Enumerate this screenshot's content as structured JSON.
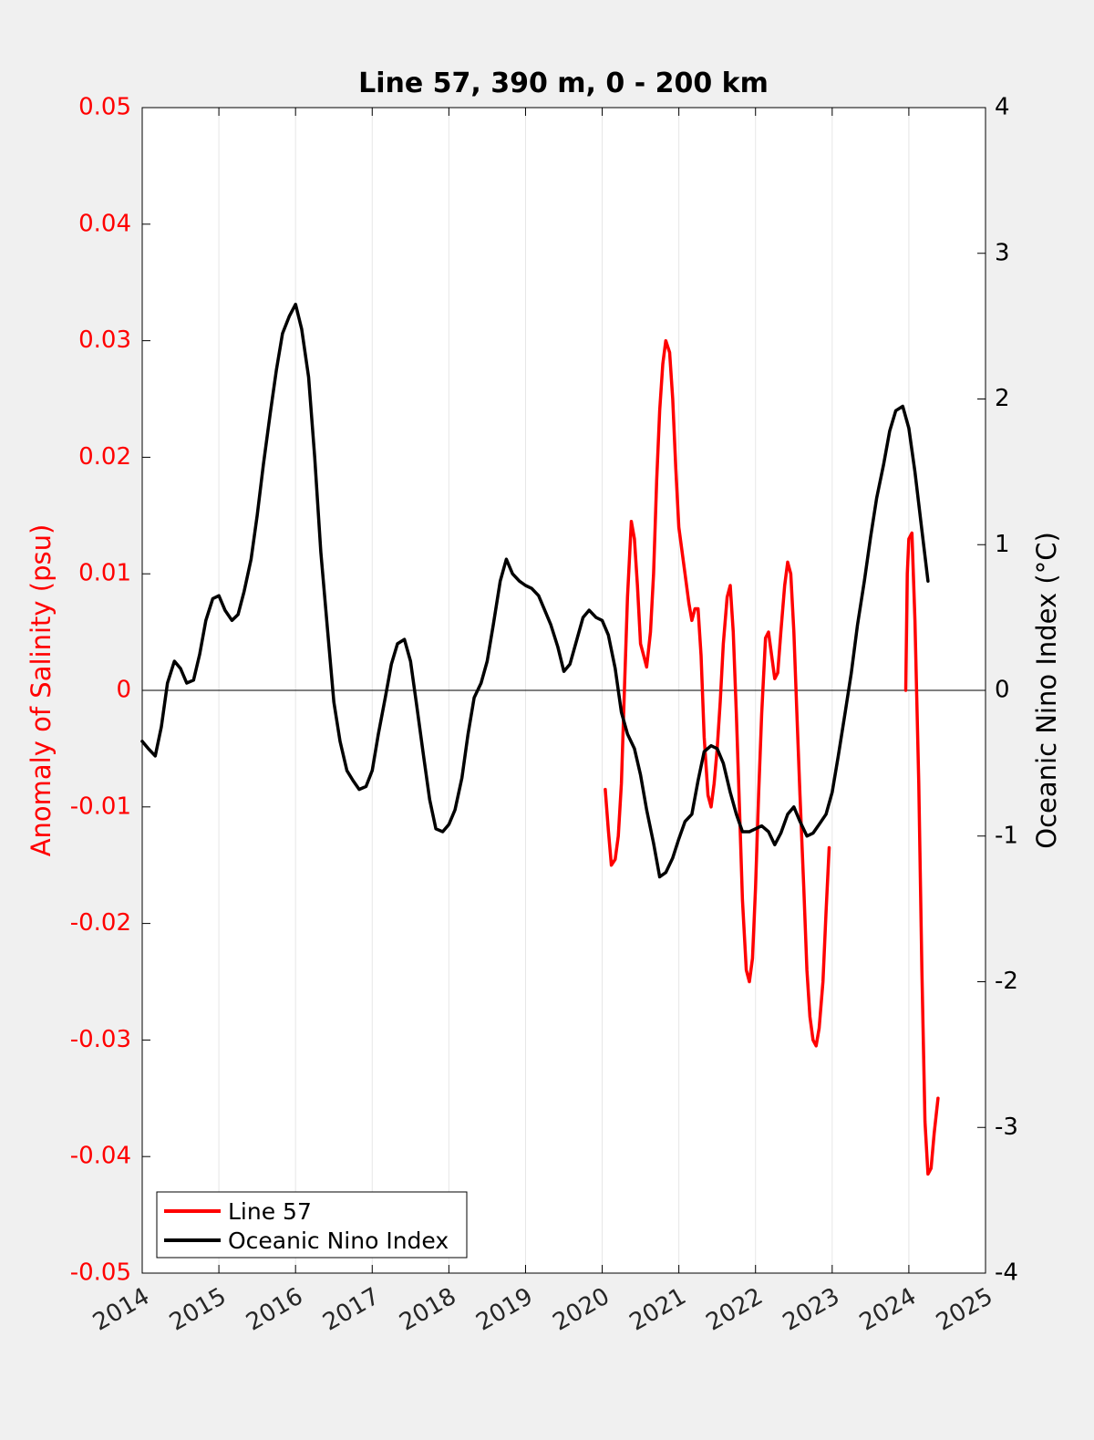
{
  "chart_data": {
    "type": "line",
    "title": "Line 57, 390 m, 0 - 200 km",
    "xlabel": "",
    "ylabel": "Anomaly of Salinity (psu)",
    "y2label": "Oceanic Nino Index (°C)",
    "xlim": [
      2014,
      2025
    ],
    "ylim": [
      -0.05,
      0.05
    ],
    "y2lim": [
      -4,
      4
    ],
    "grid": "x-only",
    "zero_line": true,
    "legend_placement": "bottom-left",
    "colors": {
      "salinity": "#ff0000",
      "oni": "#000000",
      "left_axis": "#ff0000",
      "right_axis": "#000000"
    },
    "x_ticks": [
      "2014",
      "2015",
      "2016",
      "2017",
      "2018",
      "2019",
      "2020",
      "2021",
      "2022",
      "2023",
      "2024",
      "2025"
    ],
    "x_tick_values": [
      2014,
      2015,
      2016,
      2017,
      2018,
      2019,
      2020,
      2021,
      2022,
      2023,
      2024,
      2025
    ],
    "y_ticks": [
      "-0.05",
      "-0.04",
      "-0.03",
      "-0.02",
      "-0.01",
      "0",
      "0.01",
      "0.02",
      "0.03",
      "0.04",
      "0.05"
    ],
    "y_tick_values": [
      -0.05,
      -0.04,
      -0.03,
      -0.02,
      -0.01,
      0,
      0.01,
      0.02,
      0.03,
      0.04,
      0.05
    ],
    "y2_ticks": [
      "-4",
      "-3",
      "-2",
      "-1",
      "0",
      "1",
      "2",
      "3",
      "4"
    ],
    "y2_tick_values": [
      -4,
      -3,
      -2,
      -1,
      0,
      1,
      2,
      3,
      4
    ],
    "series": [
      {
        "name": "Line 57",
        "axis": "left",
        "color": "#ff0000",
        "segments": [
          [
            [
              2020.04,
              -0.0085
            ],
            [
              2020.08,
              -0.012
            ],
            [
              2020.12,
              -0.015
            ],
            [
              2020.17,
              -0.0145
            ],
            [
              2020.21,
              -0.0125
            ],
            [
              2020.25,
              -0.008
            ],
            [
              2020.29,
              0.0
            ],
            [
              2020.33,
              0.008
            ],
            [
              2020.38,
              0.0145
            ],
            [
              2020.42,
              0.013
            ],
            [
              2020.46,
              0.009
            ],
            [
              2020.5,
              0.004
            ],
            [
              2020.54,
              0.003
            ],
            [
              2020.58,
              0.002
            ],
            [
              2020.63,
              0.005
            ],
            [
              2020.67,
              0.01
            ],
            [
              2020.71,
              0.018
            ],
            [
              2020.75,
              0.024
            ],
            [
              2020.79,
              0.028
            ],
            [
              2020.83,
              0.03
            ],
            [
              2020.88,
              0.029
            ],
            [
              2020.92,
              0.025
            ],
            [
              2020.96,
              0.019
            ],
            [
              2021.0,
              0.014
            ],
            [
              2021.04,
              0.012
            ],
            [
              2021.08,
              0.01
            ],
            [
              2021.13,
              0.0075
            ],
            [
              2021.17,
              0.006
            ],
            [
              2021.21,
              0.007
            ],
            [
              2021.25,
              0.007
            ],
            [
              2021.29,
              0.003
            ],
            [
              2021.33,
              -0.004
            ],
            [
              2021.38,
              -0.009
            ],
            [
              2021.42,
              -0.01
            ],
            [
              2021.46,
              -0.008
            ],
            [
              2021.5,
              -0.005
            ],
            [
              2021.54,
              -0.001
            ],
            [
              2021.58,
              0.004
            ],
            [
              2021.63,
              0.008
            ],
            [
              2021.67,
              0.009
            ],
            [
              2021.71,
              0.005
            ],
            [
              2021.75,
              -0.002
            ],
            [
              2021.79,
              -0.01
            ],
            [
              2021.83,
              -0.018
            ],
            [
              2021.88,
              -0.024
            ],
            [
              2021.92,
              -0.025
            ],
            [
              2021.96,
              -0.023
            ],
            [
              2022.0,
              -0.017
            ],
            [
              2022.04,
              -0.009
            ],
            [
              2022.08,
              -0.002
            ],
            [
              2022.13,
              0.0045
            ],
            [
              2022.17,
              0.005
            ],
            [
              2022.21,
              0.003
            ],
            [
              2022.25,
              0.001
            ],
            [
              2022.29,
              0.0015
            ],
            [
              2022.33,
              0.005
            ],
            [
              2022.38,
              0.009
            ],
            [
              2022.42,
              0.011
            ],
            [
              2022.46,
              0.01
            ],
            [
              2022.5,
              0.005
            ],
            [
              2022.54,
              -0.002
            ],
            [
              2022.58,
              -0.009
            ],
            [
              2022.63,
              -0.017
            ],
            [
              2022.67,
              -0.024
            ],
            [
              2022.71,
              -0.028
            ],
            [
              2022.75,
              -0.03
            ],
            [
              2022.79,
              -0.0305
            ],
            [
              2022.83,
              -0.029
            ],
            [
              2022.88,
              -0.025
            ],
            [
              2022.92,
              -0.019
            ],
            [
              2022.96,
              -0.0135
            ]
          ],
          [
            [
              2023.96,
              0.0
            ],
            [
              2023.98,
              0.01
            ],
            [
              2024.0,
              0.013
            ],
            [
              2024.04,
              0.0135
            ],
            [
              2024.08,
              0.006
            ],
            [
              2024.13,
              -0.008
            ],
            [
              2024.17,
              -0.024
            ],
            [
              2024.21,
              -0.037
            ],
            [
              2024.25,
              -0.0415
            ],
            [
              2024.29,
              -0.041
            ],
            [
              2024.33,
              -0.038
            ],
            [
              2024.38,
              -0.035
            ]
          ]
        ]
      },
      {
        "name": "Oceanic Nino Index",
        "axis": "right",
        "color": "#000000",
        "segments": [
          [
            [
              2014.0,
              -0.35
            ],
            [
              2014.08,
              -0.4
            ],
            [
              2014.17,
              -0.45
            ],
            [
              2014.25,
              -0.25
            ],
            [
              2014.33,
              0.05
            ],
            [
              2014.42,
              0.2
            ],
            [
              2014.5,
              0.15
            ],
            [
              2014.58,
              0.05
            ],
            [
              2014.67,
              0.07
            ],
            [
              2014.75,
              0.25
            ],
            [
              2014.83,
              0.48
            ],
            [
              2014.92,
              0.63
            ],
            [
              2015.0,
              0.65
            ],
            [
              2015.08,
              0.55
            ],
            [
              2015.17,
              0.48
            ],
            [
              2015.25,
              0.52
            ],
            [
              2015.33,
              0.68
            ],
            [
              2015.42,
              0.9
            ],
            [
              2015.5,
              1.2
            ],
            [
              2015.58,
              1.55
            ],
            [
              2015.67,
              1.9
            ],
            [
              2015.75,
              2.2
            ],
            [
              2015.83,
              2.45
            ],
            [
              2015.92,
              2.57
            ],
            [
              2016.0,
              2.65
            ],
            [
              2016.08,
              2.48
            ],
            [
              2016.17,
              2.15
            ],
            [
              2016.25,
              1.6
            ],
            [
              2016.33,
              0.95
            ],
            [
              2016.42,
              0.4
            ],
            [
              2016.5,
              -0.08
            ],
            [
              2016.58,
              -0.35
            ],
            [
              2016.67,
              -0.55
            ],
            [
              2016.75,
              -0.62
            ],
            [
              2016.83,
              -0.68
            ],
            [
              2016.92,
              -0.66
            ],
            [
              2017.0,
              -0.55
            ],
            [
              2017.08,
              -0.3
            ],
            [
              2017.17,
              -0.05
            ],
            [
              2017.25,
              0.18
            ],
            [
              2017.33,
              0.32
            ],
            [
              2017.42,
              0.35
            ],
            [
              2017.5,
              0.2
            ],
            [
              2017.58,
              -0.1
            ],
            [
              2017.67,
              -0.45
            ],
            [
              2017.75,
              -0.75
            ],
            [
              2017.83,
              -0.95
            ],
            [
              2017.92,
              -0.97
            ],
            [
              2018.0,
              -0.92
            ],
            [
              2018.08,
              -0.82
            ],
            [
              2018.17,
              -0.6
            ],
            [
              2018.25,
              -0.3
            ],
            [
              2018.33,
              -0.05
            ],
            [
              2018.42,
              0.05
            ],
            [
              2018.5,
              0.2
            ],
            [
              2018.58,
              0.45
            ],
            [
              2018.67,
              0.75
            ],
            [
              2018.75,
              0.9
            ],
            [
              2018.83,
              0.8
            ],
            [
              2018.92,
              0.75
            ],
            [
              2019.0,
              0.72
            ],
            [
              2019.08,
              0.7
            ],
            [
              2019.17,
              0.65
            ],
            [
              2019.25,
              0.55
            ],
            [
              2019.33,
              0.45
            ],
            [
              2019.42,
              0.3
            ],
            [
              2019.5,
              0.13
            ],
            [
              2019.58,
              0.18
            ],
            [
              2019.67,
              0.35
            ],
            [
              2019.75,
              0.5
            ],
            [
              2019.83,
              0.55
            ],
            [
              2019.92,
              0.5
            ],
            [
              2020.0,
              0.48
            ],
            [
              2020.08,
              0.38
            ],
            [
              2020.17,
              0.15
            ],
            [
              2020.25,
              -0.15
            ],
            [
              2020.33,
              -0.3
            ],
            [
              2020.42,
              -0.4
            ],
            [
              2020.5,
              -0.58
            ],
            [
              2020.58,
              -0.82
            ],
            [
              2020.67,
              -1.05
            ],
            [
              2020.75,
              -1.28
            ],
            [
              2020.83,
              -1.25
            ],
            [
              2020.92,
              -1.15
            ],
            [
              2021.0,
              -1.02
            ],
            [
              2021.08,
              -0.9
            ],
            [
              2021.17,
              -0.85
            ],
            [
              2021.25,
              -0.62
            ],
            [
              2021.33,
              -0.42
            ],
            [
              2021.42,
              -0.38
            ],
            [
              2021.5,
              -0.4
            ],
            [
              2021.58,
              -0.5
            ],
            [
              2021.67,
              -0.7
            ],
            [
              2021.75,
              -0.85
            ],
            [
              2021.83,
              -0.97
            ],
            [
              2021.92,
              -0.97
            ],
            [
              2022.0,
              -0.95
            ],
            [
              2022.08,
              -0.93
            ],
            [
              2022.17,
              -0.97
            ],
            [
              2022.25,
              -1.06
            ],
            [
              2022.33,
              -0.98
            ],
            [
              2022.42,
              -0.85
            ],
            [
              2022.5,
              -0.8
            ],
            [
              2022.58,
              -0.9
            ],
            [
              2022.67,
              -1.0
            ],
            [
              2022.75,
              -0.98
            ],
            [
              2022.83,
              -0.92
            ],
            [
              2022.92,
              -0.85
            ],
            [
              2023.0,
              -0.7
            ],
            [
              2023.08,
              -0.45
            ],
            [
              2023.17,
              -0.15
            ],
            [
              2023.25,
              0.12
            ],
            [
              2023.33,
              0.45
            ],
            [
              2023.42,
              0.75
            ],
            [
              2023.5,
              1.05
            ],
            [
              2023.58,
              1.32
            ],
            [
              2023.67,
              1.55
            ],
            [
              2023.75,
              1.78
            ],
            [
              2023.83,
              1.92
            ],
            [
              2023.92,
              1.95
            ],
            [
              2024.0,
              1.8
            ],
            [
              2024.08,
              1.5
            ],
            [
              2024.17,
              1.1
            ],
            [
              2024.25,
              0.75
            ]
          ]
        ]
      }
    ]
  }
}
